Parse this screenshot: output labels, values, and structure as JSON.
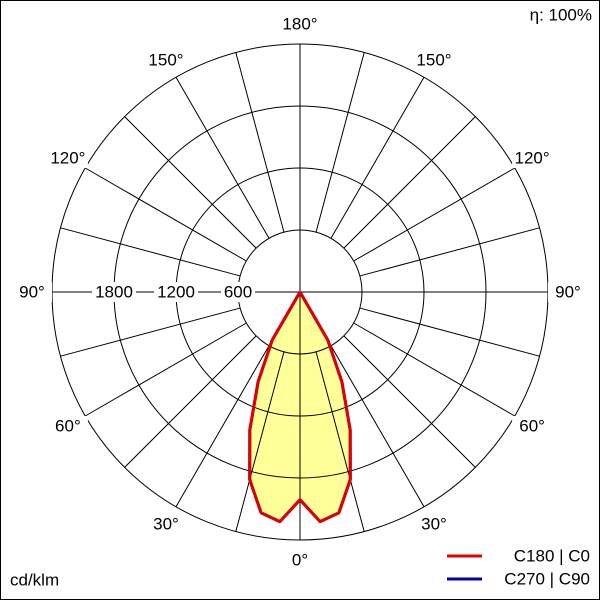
{
  "chart_data": {
    "type": "polar",
    "efficiency": "η: 100%",
    "unit_label": "cd/klm",
    "rlim": [
      0,
      2400
    ],
    "rticks": [
      600,
      1200,
      1800
    ],
    "angle_ticks": [
      {
        "value": 0,
        "label": "0°"
      },
      {
        "value": 30,
        "label": "30°"
      },
      {
        "value": 60,
        "label": "60°"
      },
      {
        "value": 90,
        "label": "90°"
      },
      {
        "value": 120,
        "label": "120°"
      },
      {
        "value": 150,
        "label": "150°"
      },
      {
        "value": 180,
        "label": "180°"
      }
    ],
    "gamma": [
      0,
      5,
      10,
      15,
      20,
      25,
      30,
      35
    ],
    "fill_color": "#ffff99",
    "series": [
      {
        "name": "C180 | C0",
        "color": "#e00000",
        "values": [
          2010,
          2230,
          2170,
          1880,
          1420,
          960,
          540,
          0
        ]
      },
      {
        "name": "C270 | C90",
        "color": "#0000b0",
        "values": [
          2010,
          2230,
          2170,
          1880,
          1420,
          960,
          540,
          0
        ]
      }
    ]
  }
}
